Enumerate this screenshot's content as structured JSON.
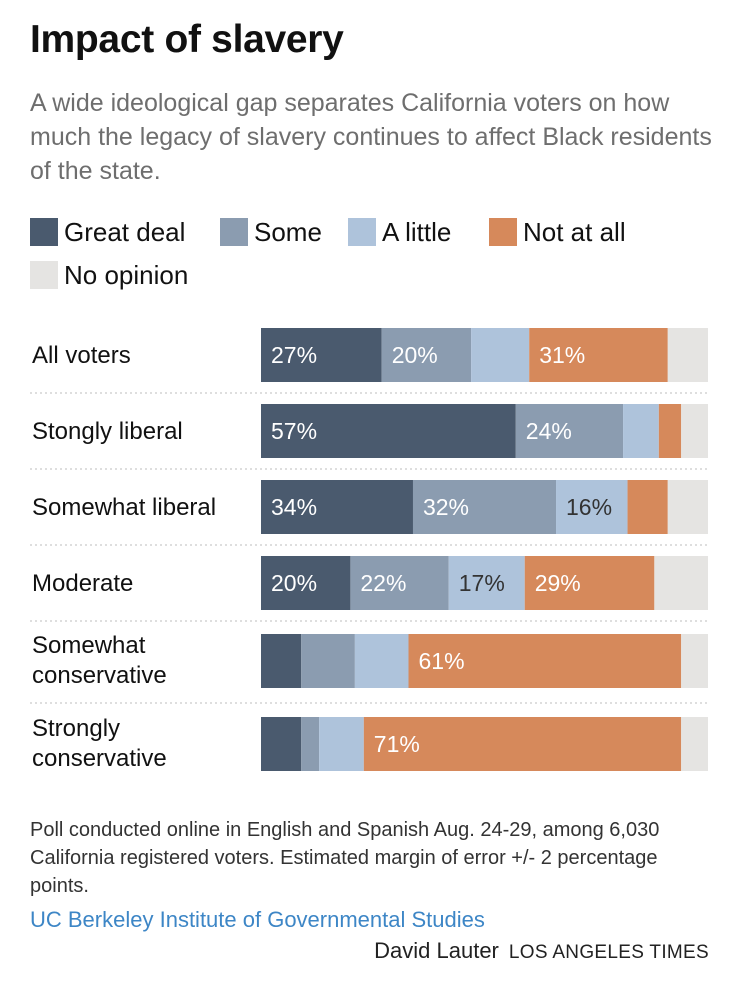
{
  "header": {
    "title": "Impact of slavery",
    "subtitle": "A wide ideological gap separates California voters on how much the legacy of slavery continues to affect Black residents of the state."
  },
  "footer": {
    "note": "Poll conducted online in English and Spanish Aug. 24-29, among 6,030 California registered voters. Estimated margin of error +/- 2 percentage points.",
    "source": "UC Berkeley Institute of Governmental Studies",
    "author": "David Lauter",
    "outlet": "LOS ANGELES TIMES"
  },
  "chart_data": {
    "type": "bar",
    "orientation": "horizontal",
    "stacked": true,
    "legend_position": "top",
    "xlim": [
      0,
      100
    ],
    "categories": [
      "All voters",
      "Stongly liberal",
      "Somewhat liberal",
      "Moderate",
      "Somewhat conservative",
      "Strongly conservative"
    ],
    "series": [
      {
        "name": "Great deal",
        "color": "#4a5a6e",
        "label_color": "#ffffff",
        "values": [
          27,
          57,
          34,
          20,
          9,
          9
        ],
        "labeled": [
          true,
          true,
          true,
          true,
          false,
          false
        ]
      },
      {
        "name": "Some",
        "color": "#8b9cb0",
        "label_color": "#ffffff",
        "values": [
          20,
          24,
          32,
          22,
          12,
          4
        ],
        "labeled": [
          true,
          true,
          true,
          true,
          false,
          false
        ]
      },
      {
        "name": "A little",
        "color": "#aec3db",
        "label_color": "#333333",
        "values": [
          13,
          8,
          16,
          17,
          12,
          10
        ],
        "labeled": [
          false,
          false,
          true,
          true,
          false,
          false
        ]
      },
      {
        "name": "Not at all",
        "color": "#d6895b",
        "label_color": "#ffffff",
        "values": [
          31,
          5,
          9,
          29,
          61,
          71
        ],
        "labeled": [
          true,
          false,
          false,
          true,
          true,
          true
        ]
      },
      {
        "name": "No opinion",
        "color": "#e5e4e2",
        "label_color": "#333333",
        "values": [
          9,
          6,
          9,
          12,
          6,
          6
        ],
        "labeled": [
          false,
          false,
          false,
          false,
          false,
          false
        ]
      }
    ]
  }
}
